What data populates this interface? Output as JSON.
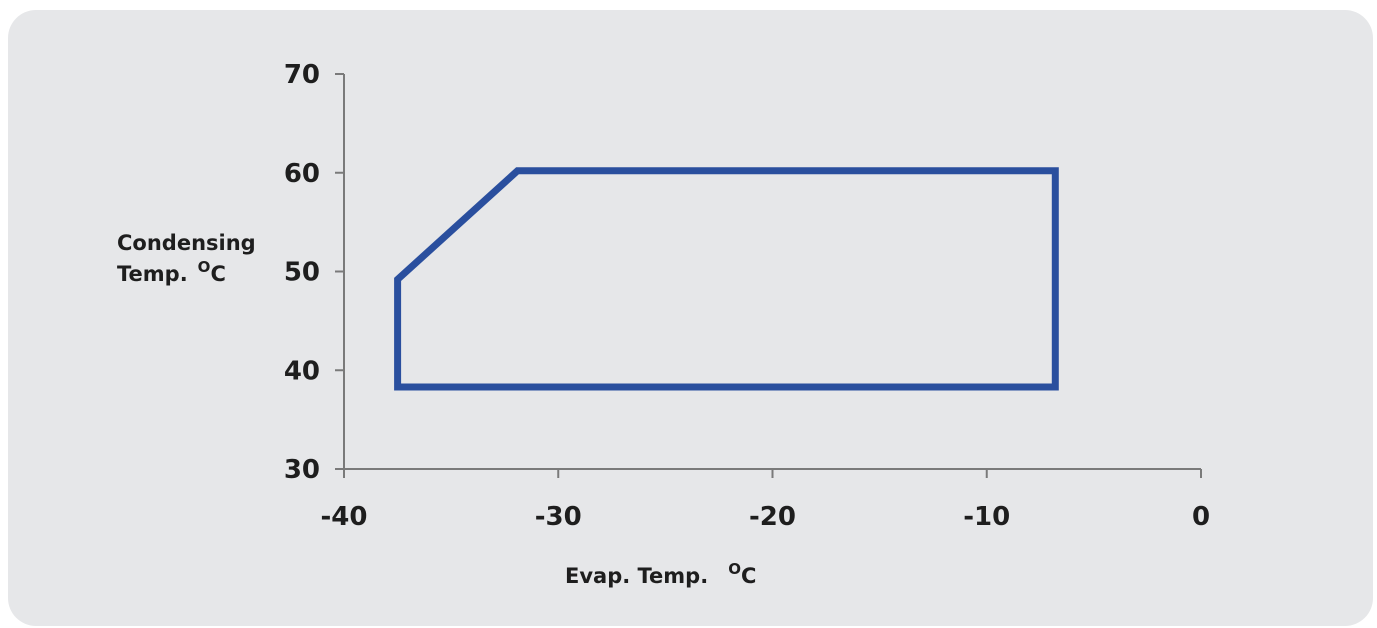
{
  "chart_data": {
    "type": "line",
    "xlabel": "Evap. Temp.",
    "xlabel_unit": "C",
    "xlabel_unit_sup": "O",
    "ylabel_line1": "Condensing",
    "ylabel_line2": "Temp.",
    "ylabel_unit": "C",
    "ylabel_unit_sup": "O",
    "xlim": [
      -40,
      0
    ],
    "ylim": [
      30,
      70
    ],
    "xticks": [
      -40,
      -30,
      -20,
      -10,
      0
    ],
    "yticks": [
      30,
      40,
      50,
      60,
      70
    ],
    "grid": false,
    "series": [
      {
        "color": "#2a4f9e",
        "closed": true,
        "points": [
          {
            "x": -37.5,
            "y": 38.3
          },
          {
            "x": -37.5,
            "y": 49.2
          },
          {
            "x": -31.9,
            "y": 60.2
          },
          {
            "x": -6.8,
            "y": 60.2
          },
          {
            "x": -6.8,
            "y": 38.3
          }
        ]
      }
    ]
  },
  "colors": {
    "panel": "#e6e7e9",
    "axis": "#7a7a7a",
    "series": "#2a4f9e",
    "text": "#1e1e1e"
  }
}
